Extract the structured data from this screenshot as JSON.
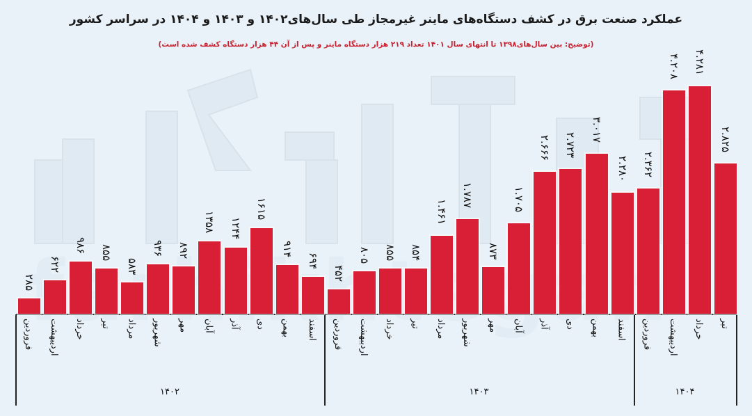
{
  "title": "عملکرد صنعت برق در کشف دستگاه‌های ماینر غیرمجاز طی سال‌های۱۴۰۲ و ۱۴۰۳ و ۱۴۰۴ در سراسر کشور",
  "subtitle": "(توضیح: بین سال‌های۱۳۹۸ تا انتهای سال ۱۴۰۱ تعداد ۲۱۹ هزار دستگاه ماینر و پس از آن ۴۴ هزار دستگاه کشف شده است)",
  "watermark": "farhikhtegan",
  "colors": {
    "bar": "#d91f35",
    "background": "#e9f2f9",
    "subtitle": "#c8202e"
  },
  "chart_data": {
    "type": "bar",
    "title": "عملکرد صنعت برق در کشف دستگاه‌های ماینر غیرمجاز طی سال‌های۱۴۰۲ و ۱۴۰۳ و ۱۴۰۴ در سراسر کشور",
    "subtitle": "(توضیح: بین سال‌های۱۳۹۸ تا انتهای سال ۱۴۰۱ تعداد ۲۱۹ هزار دستگاه ماینر و پس از آن ۴۴ هزار دستگاه کشف شده است)",
    "xlabel": "",
    "ylabel": "",
    "grid": false,
    "legend": "none",
    "groups": [
      {
        "year": "۱۴۰۲",
        "months": [
          "فروردین",
          "اردیبهشت",
          "خرداد",
          "تیر",
          "مرداد",
          "شهریور",
          "مهر",
          "آبان",
          "آذر",
          "دی",
          "بهمن",
          "اسفند"
        ],
        "values": [
          285,
          622,
          986,
          855,
          583,
          936,
          892,
          1358,
          1244,
          1615,
          914,
          694
        ],
        "labels": [
          "۲۸۵",
          "۶۲۲",
          "۹۸۶",
          "۸۵۵",
          "۵۸۳",
          "۹۳۶",
          "۸۹۲",
          "۱۳۵۸",
          "۱۲۴۴",
          "۱۶۱۵",
          "۹۱۴",
          "۶۹۴"
        ]
      },
      {
        "year": "۱۴۰۳",
        "months": [
          "فروردین",
          "اردیبهشت",
          "خرداد",
          "تیر",
          "مرداد",
          "شهریور",
          "مهر",
          "آبان",
          "آذر",
          "دی",
          "بهمن",
          "اسفند"
        ],
        "values": [
          452,
          805,
          855,
          854,
          1461,
          1787,
          873,
          1705,
          2666,
          2723,
          3017,
          2280
        ],
        "labels": [
          "۴۵۲",
          "۸۰۵",
          "۸۵۵",
          "۸۵۴",
          "۱.۴۶۱",
          "۱.۷۸۷",
          "۸۷۳",
          "۱.۷۰۵",
          "۲.۶۶۶",
          "۲.۷۲۳",
          "۳.۰۱۷",
          "۲.۲۸۰"
        ]
      },
      {
        "year": "۱۴۰۴",
        "months": [
          "فروردین",
          "اردیبهشت",
          "خرداد",
          "تیر"
        ],
        "values": [
          2362,
          4208,
          4281,
          2825
        ],
        "labels": [
          "۲.۳۶۲",
          "۴.۲۰۸",
          "۴.۲۸۱",
          "۲.۸۲۵"
        ]
      }
    ],
    "ylim": [
      0,
      4500
    ]
  }
}
